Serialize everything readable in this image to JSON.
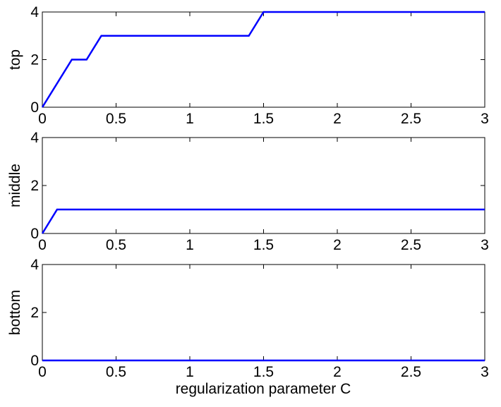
{
  "figure": {
    "xlabel": "regularization parameter C"
  },
  "chart_data": [
    {
      "type": "line",
      "ylabel": "top",
      "xlim": [
        0,
        3
      ],
      "ylim": [
        0,
        4
      ],
      "xticks": [
        "0",
        "0.5",
        "1",
        "1.5",
        "2",
        "2.5",
        "3"
      ],
      "yticks": [
        "0",
        "2",
        "4"
      ],
      "grid": false,
      "color": "#0000ff",
      "x": [
        0,
        0.2,
        0.3,
        0.4,
        1.4,
        1.5,
        3
      ],
      "y": [
        0,
        2,
        2,
        3,
        3,
        4,
        4
      ]
    },
    {
      "type": "line",
      "ylabel": "middle",
      "xlim": [
        0,
        3
      ],
      "ylim": [
        0,
        4
      ],
      "xticks": [
        "0",
        "0.5",
        "1",
        "1.5",
        "2",
        "2.5",
        "3"
      ],
      "yticks": [
        "0",
        "2",
        "4"
      ],
      "grid": false,
      "color": "#0000ff",
      "x": [
        0,
        0.1,
        3
      ],
      "y": [
        0,
        1,
        1
      ]
    },
    {
      "type": "line",
      "ylabel": "bottom",
      "xlim": [
        0,
        3
      ],
      "ylim": [
        0,
        4
      ],
      "xticks": [
        "0",
        "0.5",
        "1",
        "1.5",
        "2",
        "2.5",
        "3"
      ],
      "yticks": [
        "0",
        "2",
        "4"
      ],
      "grid": false,
      "color": "#0000ff",
      "x": [
        0,
        3
      ],
      "y": [
        0,
        0
      ]
    }
  ]
}
